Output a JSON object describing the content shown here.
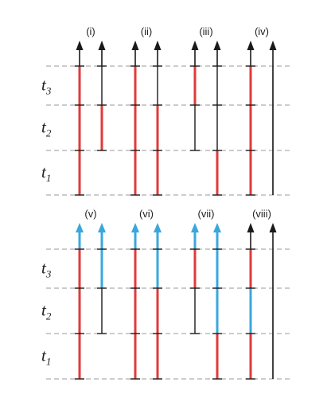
{
  "colors": {
    "black": "#1a1a1a",
    "red": "#e23a3a",
    "blue": "#3aa7dc",
    "guide": "#9a9a9a"
  },
  "time_labels": [
    {
      "base": "t",
      "sub": "3"
    },
    {
      "base": "t",
      "sub": "2"
    },
    {
      "base": "t",
      "sub": "1"
    }
  ],
  "panels": [
    {
      "label": "(i)",
      "lines": [
        {
          "segments": [
            "red",
            "red",
            "red"
          ],
          "arrow": "black"
        },
        {
          "segments": [
            null,
            "red",
            "black"
          ],
          "arrow": "black"
        }
      ]
    },
    {
      "label": "(ii)",
      "lines": [
        {
          "segments": [
            "red",
            "red",
            "red"
          ],
          "arrow": "black"
        },
        {
          "segments": [
            "red",
            "red",
            "black"
          ],
          "arrow": "black"
        }
      ]
    },
    {
      "label": "(iii)",
      "lines": [
        {
          "segments": [
            null,
            "black",
            "red"
          ],
          "arrow": "black"
        },
        {
          "segments": [
            "red",
            "black",
            "black"
          ],
          "arrow": "black"
        }
      ]
    },
    {
      "label": "(iv)",
      "lines": [
        {
          "segments": [
            "red",
            "red",
            "red"
          ],
          "arrow": "black"
        },
        {
          "segments": [
            null,
            null,
            null
          ],
          "arrow": "black"
        }
      ]
    },
    {
      "label": "(v)",
      "lines": [
        {
          "segments": [
            "red",
            "red",
            "red"
          ],
          "arrow": "blue"
        },
        {
          "segments": [
            null,
            "black",
            "blue"
          ],
          "arrow": "blue"
        }
      ]
    },
    {
      "label": "(vi)",
      "lines": [
        {
          "segments": [
            "red",
            "red",
            "red"
          ],
          "arrow": "blue"
        },
        {
          "segments": [
            "red",
            "red",
            "blue"
          ],
          "arrow": "blue"
        }
      ]
    },
    {
      "label": "(vii)",
      "lines": [
        {
          "segments": [
            null,
            "black",
            "red"
          ],
          "arrow": "blue"
        },
        {
          "segments": [
            "red",
            "blue",
            "blue"
          ],
          "arrow": "blue"
        }
      ]
    },
    {
      "label": "(viii)",
      "lines": [
        {
          "segments": [
            "red",
            "blue",
            "red"
          ],
          "arrow": "black"
        },
        {
          "segments": [
            null,
            null,
            null
          ],
          "arrow": "black"
        }
      ]
    }
  ]
}
